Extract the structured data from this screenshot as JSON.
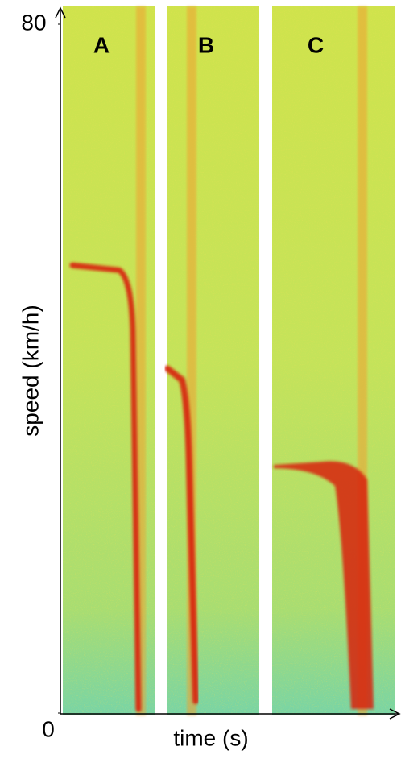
{
  "chart_data": {
    "type": "spectrogram",
    "ylabel": "speed (km/h)",
    "xlabel": "time (s)",
    "ylim": [
      0,
      80
    ],
    "yticks": [
      0,
      80
    ],
    "panels": [
      {
        "label": "A",
        "start_speed": 52
      },
      {
        "label": "B",
        "start_speed": 40
      },
      {
        "label": "C",
        "start_speed": 29
      }
    ]
  }
}
